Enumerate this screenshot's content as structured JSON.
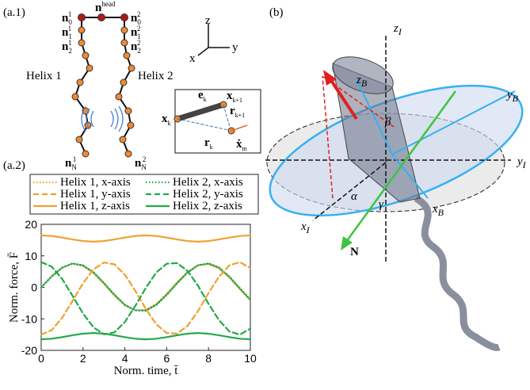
{
  "panels": {
    "a1": "(a.1)",
    "a2": "(a.2)",
    "b": "(b)"
  },
  "diagram_a1": {
    "helix_labels": [
      "Helix 1",
      "Helix 2"
    ],
    "nodes": [
      {
        "base": "n",
        "sup": "head"
      },
      {
        "base": "n",
        "sub": "0",
        "sup": "1"
      },
      {
        "base": "n",
        "sub": "1",
        "sup": "1"
      },
      {
        "base": "n",
        "sub": "2",
        "sup": "1"
      },
      {
        "base": "n",
        "sub": "N",
        "sup": "1"
      },
      {
        "base": "n",
        "sub": "0",
        "sup": "2"
      },
      {
        "base": "n",
        "sub": "1",
        "sup": "2"
      },
      {
        "base": "n",
        "sub": "2",
        "sup": "2"
      },
      {
        "base": "n",
        "sub": "N",
        "sup": "2"
      }
    ],
    "axes": [
      "z",
      "y",
      "x"
    ],
    "inset": [
      {
        "base": "e",
        "sub": "k"
      },
      {
        "base": "x",
        "sub": "k+1"
      },
      {
        "base": "r",
        "sub": "k+1"
      },
      {
        "base": "x",
        "sub": "k"
      },
      {
        "base": "r",
        "sub": "k"
      },
      {
        "base": "ẋ",
        "sub": "m"
      }
    ]
  },
  "diagram_b": {
    "labels": [
      {
        "base": "z",
        "sub": "I"
      },
      {
        "base": "z",
        "sub": "B"
      },
      {
        "base": "y",
        "sub": "B"
      },
      {
        "base": "y",
        "sub": "I"
      },
      {
        "base": "x",
        "sub": "I"
      },
      {
        "base": "x",
        "sub": "B"
      },
      {
        "base": "β"
      },
      {
        "base": "α"
      },
      {
        "base": "γ"
      },
      {
        "base": "N"
      }
    ]
  },
  "chart_data": {
    "type": "line",
    "xlabel": "Norm. time, t̄",
    "ylabel": "Norm. force, F̄",
    "x": [
      0,
      0.5,
      1,
      1.5,
      2,
      2.5,
      3,
      3.5,
      4,
      4.5,
      5,
      5.5,
      6,
      6.5,
      7,
      7.5,
      8,
      8.5,
      9,
      9.5,
      10
    ],
    "xlim": [
      0,
      10
    ],
    "xticks": [
      0,
      2,
      4,
      6,
      8,
      10
    ],
    "ylim": [
      -20,
      20
    ],
    "yticks": [
      -20,
      -10,
      0,
      10,
      20
    ],
    "series": [
      {
        "name": "Helix 1, x-axis",
        "color": "#f0a030",
        "style": "dotted",
        "values": [
          0,
          3.6,
          6.3,
          7.5,
          6.8,
          4.5,
          1.1,
          -2.6,
          -5.7,
          -7.3,
          -7.2,
          -5.3,
          -2.1,
          1.6,
          4.9,
          7.0,
          7.4,
          6.0,
          3.1,
          -0.6,
          -4.1
        ]
      },
      {
        "name": "Helix 2, x-axis",
        "color": "#22a84a",
        "style": "dotted",
        "values": [
          0,
          3.4,
          6.2,
          7.6,
          7.0,
          4.8,
          1.4,
          -2.3,
          -5.5,
          -7.3,
          -7.4,
          -5.6,
          -2.4,
          1.3,
          4.7,
          7.0,
          7.6,
          6.3,
          3.4,
          -0.3,
          -3.9
        ]
      },
      {
        "name": "Helix 1, y-axis",
        "color": "#f0a030",
        "style": "dashed",
        "values": [
          -15,
          -13.6,
          -9.7,
          -4.3,
          1.3,
          5.7,
          7.9,
          7.3,
          4.0,
          -1.1,
          -6.8,
          -11.7,
          -14.5,
          -14.7,
          -12.2,
          -7.5,
          -1.8,
          3.4,
          7.0,
          8.0,
          6.1
        ]
      },
      {
        "name": "Helix 2, y-axis",
        "color": "#22a84a",
        "style": "dashed",
        "values": [
          8,
          6.6,
          2.7,
          -2.7,
          -8.3,
          -12.7,
          -14.9,
          -14.3,
          -11.0,
          -5.9,
          -0.2,
          4.7,
          7.5,
          7.7,
          5.2,
          0.5,
          -5.2,
          -10.4,
          -14.0,
          -15.0,
          -13.1
        ]
      },
      {
        "name": "Helix 1, z-axis",
        "color": "#f0a030",
        "style": "solid",
        "values": [
          16.5,
          16.3,
          15.8,
          15.2,
          14.7,
          14.5,
          14.7,
          15.2,
          15.8,
          16.3,
          16.5,
          16.3,
          15.8,
          15.2,
          14.7,
          14.5,
          14.7,
          15.2,
          15.8,
          16.3,
          16.5
        ]
      },
      {
        "name": "Helix 2, z-axis",
        "color": "#22a84a",
        "style": "solid",
        "values": [
          -16.5,
          -16.3,
          -15.8,
          -15.2,
          -14.7,
          -14.5,
          -14.7,
          -15.2,
          -15.8,
          -16.3,
          -16.5,
          -16.3,
          -15.8,
          -15.2,
          -14.7,
          -14.5,
          -14.7,
          -15.2,
          -15.8,
          -16.3,
          -16.5
        ]
      }
    ]
  }
}
